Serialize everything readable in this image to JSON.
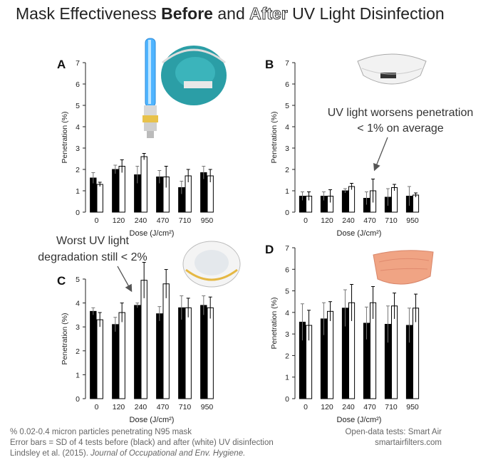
{
  "title": {
    "prefix": "Mask Effectiveness ",
    "before": "Before",
    "and": " and ",
    "after": "After",
    "suffix": " UV Light Disinfection"
  },
  "annotations": {
    "b_line1": "UV light worsens penetration",
    "b_line2": "< 1% on average",
    "c_line1": "Worst UV light",
    "c_line2": "degradation still < 2%"
  },
  "footer": {
    "left1": "% 0.02-0.4 micron particles penetrating N95 mask",
    "left2": "Error bars = SD of 4 tests before (black) and after (white) UV disinfection",
    "left3a": "Lindsley et al. (2015). ",
    "left3b": "Journal of Occupational and Env. Hygiene.",
    "right1": "Open-data tests: Smart Air",
    "right2": "smartairfilters.com"
  },
  "colors": {
    "before": "#000000",
    "after": "#ffffff"
  },
  "chart_data": [
    {
      "panel": "A",
      "type": "bar",
      "categories": [
        "0",
        "120",
        "240",
        "470",
        "710",
        "950"
      ],
      "xlabel": "Dose (J/cm²)",
      "ylabel": "Penetration (%)",
      "ylim": [
        0,
        7
      ],
      "yticks": [
        0,
        1,
        2,
        3,
        4,
        5,
        6,
        7
      ],
      "series": [
        {
          "values": [
            1.6,
            2.0,
            1.75,
            1.65,
            1.15,
            1.85
          ],
          "error": [
            0.25,
            0.2,
            0.4,
            0.3,
            0.3,
            0.3
          ]
        },
        {
          "values": [
            1.3,
            2.15,
            2.6,
            1.65,
            1.7,
            1.7
          ],
          "error": [
            0.1,
            0.3,
            0.15,
            0.5,
            0.3,
            0.3
          ]
        }
      ]
    },
    {
      "panel": "B",
      "type": "bar",
      "categories": [
        "0",
        "120",
        "240",
        "470",
        "710",
        "950"
      ],
      "xlabel": "Dose (J/cm²)",
      "ylabel": "Penetration (%)",
      "ylim": [
        0,
        7
      ],
      "yticks": [
        0,
        1,
        2,
        3,
        4,
        5,
        6,
        7
      ],
      "series": [
        {
          "values": [
            0.75,
            0.75,
            1.0,
            0.65,
            0.7,
            0.75
          ],
          "error": [
            0.2,
            0.2,
            0.1,
            0.3,
            0.4,
            0.45
          ]
        },
        {
          "values": [
            0.75,
            0.75,
            1.2,
            1.0,
            1.15,
            0.8
          ],
          "error": [
            0.2,
            0.3,
            0.15,
            0.55,
            0.15,
            0.1
          ]
        }
      ]
    },
    {
      "panel": "C",
      "type": "bar",
      "categories": [
        "0",
        "120",
        "240",
        "470",
        "710",
        "950"
      ],
      "xlabel": "Dose (J/cm²)",
      "ylabel": "Penetration (%)",
      "ylim": [
        0,
        5.5
      ],
      "yticks": [
        0,
        1,
        2,
        3,
        4,
        5
      ],
      "series": [
        {
          "values": [
            3.65,
            3.1,
            3.9,
            3.55,
            3.8,
            3.9
          ],
          "error": [
            0.15,
            0.3,
            0.1,
            0.3,
            0.5,
            0.4
          ]
        },
        {
          "values": [
            3.3,
            3.6,
            4.95,
            4.8,
            3.8,
            3.8
          ],
          "error": [
            0.3,
            0.4,
            0.75,
            0.6,
            0.4,
            0.45
          ]
        }
      ]
    },
    {
      "panel": "D",
      "type": "bar",
      "categories": [
        "0",
        "120",
        "240",
        "470",
        "710",
        "950"
      ],
      "xlabel": "Dose (J/cm²)",
      "ylabel": "Penetration (%)",
      "ylim": [
        0,
        7
      ],
      "yticks": [
        0,
        1,
        2,
        3,
        4,
        5,
        6,
        7
      ],
      "series": [
        {
          "values": [
            3.55,
            3.7,
            4.2,
            3.5,
            3.45,
            3.4
          ],
          "error": [
            0.85,
            0.75,
            0.85,
            0.75,
            0.85,
            0.8
          ]
        },
        {
          "values": [
            3.4,
            4.05,
            4.45,
            4.45,
            4.3,
            4.2
          ],
          "error": [
            0.7,
            0.45,
            0.85,
            0.75,
            0.6,
            0.65
          ]
        }
      ]
    }
  ]
}
